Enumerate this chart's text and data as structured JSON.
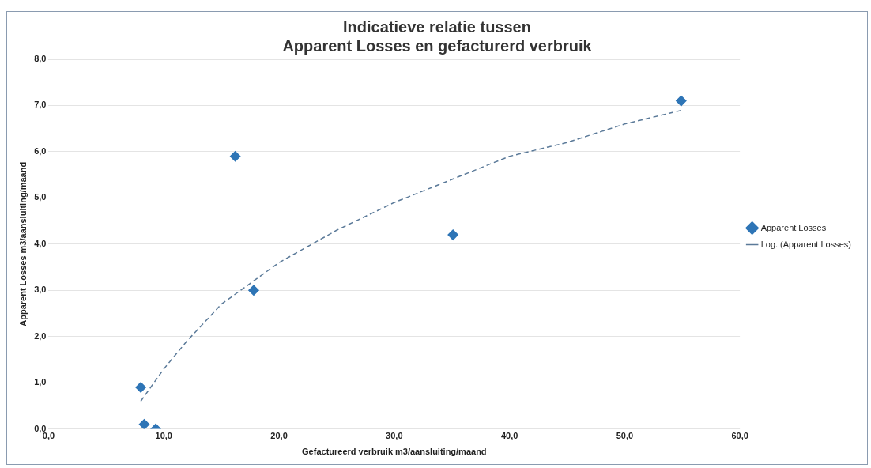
{
  "chart_data": {
    "type": "scatter",
    "title": "Indicatieve relatie tussen\nApparent Losses en gefacturerd verbruik",
    "xlabel": "Gefactureerd verbruik m3/aansluiting/maand",
    "ylabel": "Apparent Losses m3/aansluiting/maand",
    "series": [
      {
        "name": "Apparent Losses",
        "type": "scatter",
        "color": "#2e75b6",
        "marker": "diamond",
        "x": [
          8.0,
          8.3,
          9.3,
          16.2,
          17.8,
          35.1,
          54.9
        ],
        "values": [
          0.9,
          0.1,
          0.0,
          5.9,
          3.0,
          4.2,
          7.1
        ]
      },
      {
        "name": "Log. (Apparent Losses)",
        "type": "line",
        "color": "#5b7a99",
        "marker": "none",
        "line_style": "dashed",
        "x": [
          8,
          10,
          12,
          15,
          20,
          25,
          30,
          35,
          40,
          45,
          50,
          55
        ],
        "values": [
          0.6,
          1.3,
          1.9,
          2.7,
          3.6,
          4.3,
          4.9,
          5.4,
          5.9,
          6.2,
          6.6,
          6.9
        ]
      }
    ],
    "xlim": [
      0,
      60
    ],
    "xticks": [
      {
        "value": 0,
        "label": "0,0"
      },
      {
        "value": 10,
        "label": "10,0"
      },
      {
        "value": 20,
        "label": "20,0"
      },
      {
        "value": 30,
        "label": "30,0"
      },
      {
        "value": 40,
        "label": "40,0"
      },
      {
        "value": 50,
        "label": "50,0"
      },
      {
        "value": 60,
        "label": "60,0"
      }
    ],
    "ylim": [
      0,
      8
    ],
    "yticks": [
      {
        "value": 0,
        "label": "0,0"
      },
      {
        "value": 1,
        "label": "1,0"
      },
      {
        "value": 2,
        "label": "2,0"
      },
      {
        "value": 3,
        "label": "3,0"
      },
      {
        "value": 4,
        "label": "4,0"
      },
      {
        "value": 5,
        "label": "5,0"
      },
      {
        "value": 6,
        "label": "6,0"
      },
      {
        "value": 7,
        "label": "7,0"
      },
      {
        "value": 8,
        "label": "8,0"
      }
    ],
    "grid": "y",
    "legend": "right"
  }
}
